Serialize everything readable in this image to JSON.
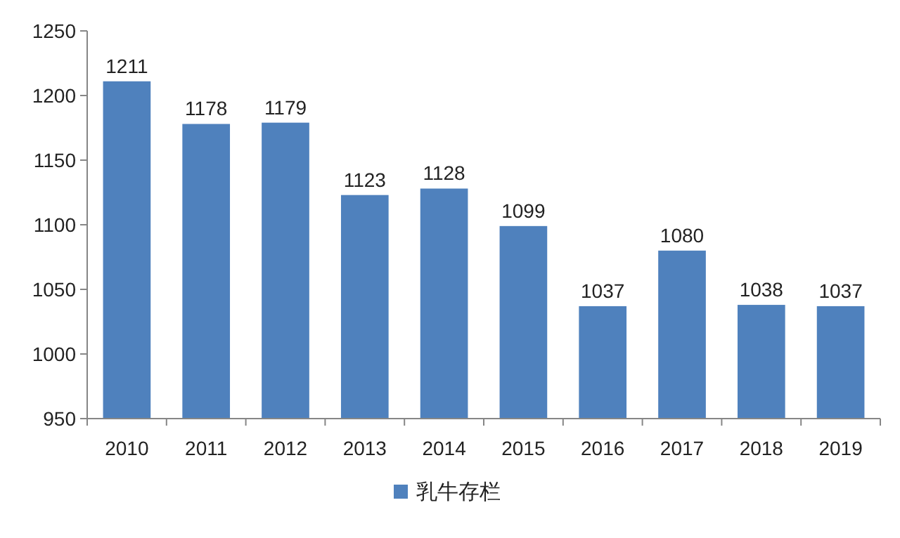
{
  "chart_data": {
    "type": "bar",
    "categories": [
      "2010",
      "2011",
      "2012",
      "2013",
      "2014",
      "2015",
      "2016",
      "2017",
      "2018",
      "2019"
    ],
    "series": [
      {
        "name": "乳牛存栏",
        "color": "#4f81bd",
        "values": [
          1211,
          1178,
          1179,
          1123,
          1128,
          1099,
          1037,
          1080,
          1038,
          1037
        ]
      }
    ],
    "ylim": [
      950,
      1250
    ],
    "yticks": [
      950,
      1000,
      1050,
      1100,
      1150,
      1200,
      1250
    ],
    "data_labels": true,
    "legend": "bottom",
    "grid": false
  }
}
